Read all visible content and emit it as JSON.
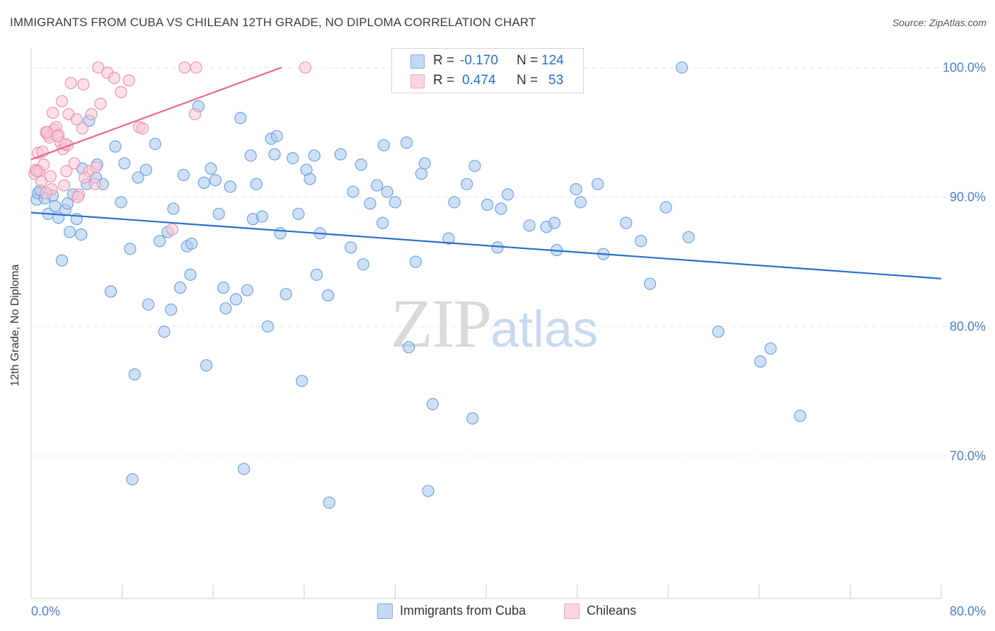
{
  "header": {
    "title": "IMMIGRANTS FROM CUBA VS CHILEAN 12TH GRADE, NO DIPLOMA CORRELATION CHART",
    "source": "Source: ZipAtlas.com"
  },
  "watermark": {
    "zip": "ZIP",
    "atlas": "atlas"
  },
  "legend": {
    "r_label": "R =",
    "n_label": "N =",
    "rows": [
      {
        "r": "-0.170",
        "n": "124",
        "color": "#7ab0e8"
      },
      {
        "r": "0.474",
        "n": "53",
        "color": "#f4a7c0"
      }
    ]
  },
  "colors": {
    "blue_fill": "#aac9f0",
    "blue_stroke": "#6fa3dc",
    "blue_line": "#2a6fcb",
    "pink_fill": "#f8c6d6",
    "pink_stroke": "#eb93b2",
    "pink_line": "#e8678f",
    "tick_label": "#4a7fcc",
    "grid": "#e6e6e6"
  },
  "chart_data": {
    "type": "scatter",
    "title": "IMMIGRANTS FROM CUBA VS CHILEAN 12TH GRADE, NO DIPLOMA CORRELATION CHART",
    "xlabel": "",
    "ylabel": "12th Grade, No Diploma",
    "xlim": [
      0,
      80
    ],
    "ylim": [
      59,
      101.5
    ],
    "x_tick_labels": [
      "0.0%",
      "80.0%"
    ],
    "y_ticks": [
      70,
      80,
      90,
      100
    ],
    "y_tick_labels": [
      "70.0%",
      "80.0%",
      "90.0%",
      "100.0%"
    ],
    "grid": true,
    "legend_position": "bottom-center",
    "series": [
      {
        "name": "Immigrants from Cuba",
        "color": "#7ab0e8",
        "trend": {
          "x": [
            0,
            80
          ],
          "y": [
            88.8,
            83.7
          ]
        },
        "points": [
          [
            0.5,
            89.8
          ],
          [
            0.6,
            90.3
          ],
          [
            0.8,
            90.5
          ],
          [
            1.2,
            89.9
          ],
          [
            1.5,
            88.7
          ],
          [
            1.9,
            90.1
          ],
          [
            2.1,
            89.3
          ],
          [
            2.4,
            88.4
          ],
          [
            2.7,
            85.1
          ],
          [
            3.0,
            89.0
          ],
          [
            3.2,
            89.5
          ],
          [
            3.4,
            87.3
          ],
          [
            3.7,
            90.2
          ],
          [
            4.0,
            88.3
          ],
          [
            4.4,
            87.1
          ],
          [
            4.5,
            92.2
          ],
          [
            4.9,
            91.0
          ],
          [
            5.1,
            95.9
          ],
          [
            5.7,
            91.5
          ],
          [
            5.8,
            92.5
          ],
          [
            6.3,
            91.0
          ],
          [
            7.0,
            82.7
          ],
          [
            7.9,
            89.6
          ],
          [
            7.4,
            93.9
          ],
          [
            8.2,
            92.6
          ],
          [
            8.7,
            86.0
          ],
          [
            9.4,
            91.5
          ],
          [
            9.1,
            76.3
          ],
          [
            8.9,
            68.2
          ],
          [
            10.1,
            92.1
          ],
          [
            10.3,
            81.7
          ],
          [
            10.9,
            94.1
          ],
          [
            11.3,
            86.6
          ],
          [
            11.7,
            79.6
          ],
          [
            12.0,
            87.3
          ],
          [
            12.3,
            81.3
          ],
          [
            12.5,
            89.1
          ],
          [
            13.1,
            83.0
          ],
          [
            13.4,
            91.7
          ],
          [
            13.7,
            86.2
          ],
          [
            14.1,
            86.4
          ],
          [
            14.0,
            84.0
          ],
          [
            14.7,
            97.0
          ],
          [
            15.2,
            91.1
          ],
          [
            15.4,
            77.0
          ],
          [
            15.8,
            92.2
          ],
          [
            16.2,
            91.3
          ],
          [
            16.5,
            88.7
          ],
          [
            16.9,
            83.0
          ],
          [
            17.1,
            81.4
          ],
          [
            17.5,
            90.8
          ],
          [
            18.0,
            82.1
          ],
          [
            18.4,
            96.1
          ],
          [
            18.7,
            69.0
          ],
          [
            19.0,
            82.8
          ],
          [
            19.3,
            93.2
          ],
          [
            19.5,
            88.3
          ],
          [
            19.8,
            91.0
          ],
          [
            20.3,
            88.5
          ],
          [
            20.8,
            80.0
          ],
          [
            21.1,
            94.5
          ],
          [
            21.4,
            93.3
          ],
          [
            21.6,
            94.7
          ],
          [
            21.9,
            87.2
          ],
          [
            22.4,
            82.5
          ],
          [
            23.0,
            93.0
          ],
          [
            23.5,
            88.7
          ],
          [
            23.8,
            75.8
          ],
          [
            24.2,
            92.1
          ],
          [
            24.5,
            91.4
          ],
          [
            24.9,
            93.2
          ],
          [
            25.1,
            84.0
          ],
          [
            25.4,
            87.2
          ],
          [
            26.1,
            82.4
          ],
          [
            26.2,
            66.4
          ],
          [
            27.2,
            93.3
          ],
          [
            28.1,
            86.1
          ],
          [
            28.3,
            90.4
          ],
          [
            29.0,
            92.5
          ],
          [
            29.2,
            84.8
          ],
          [
            29.8,
            89.5
          ],
          [
            30.4,
            90.9
          ],
          [
            30.9,
            88.0
          ],
          [
            31.3,
            90.4
          ],
          [
            31.0,
            94.0
          ],
          [
            32.0,
            89.6
          ],
          [
            33.0,
            94.2
          ],
          [
            33.2,
            78.4
          ],
          [
            33.8,
            85.0
          ],
          [
            34.3,
            91.8
          ],
          [
            34.6,
            92.6
          ],
          [
            34.9,
            67.3
          ],
          [
            35.3,
            74.0
          ],
          [
            36.7,
            86.8
          ],
          [
            37.2,
            89.6
          ],
          [
            38.3,
            91.0
          ],
          [
            38.8,
            72.9
          ],
          [
            39.0,
            92.4
          ],
          [
            40.1,
            89.4
          ],
          [
            41.0,
            86.1
          ],
          [
            41.3,
            89.1
          ],
          [
            41.9,
            90.2
          ],
          [
            43.8,
            87.8
          ],
          [
            45.3,
            87.7
          ],
          [
            46.0,
            88.0
          ],
          [
            46.2,
            85.9
          ],
          [
            47.9,
            90.6
          ],
          [
            48.3,
            89.6
          ],
          [
            49.8,
            91.0
          ],
          [
            50.3,
            85.6
          ],
          [
            52.3,
            88.0
          ],
          [
            53.6,
            86.6
          ],
          [
            54.4,
            83.3
          ],
          [
            55.8,
            89.2
          ],
          [
            57.2,
            100.0
          ],
          [
            57.8,
            86.9
          ],
          [
            60.4,
            79.6
          ],
          [
            64.1,
            77.3
          ],
          [
            65.0,
            78.3
          ],
          [
            67.6,
            73.1
          ]
        ]
      },
      {
        "name": "Chileans",
        "color": "#f4a7c0",
        "trend": {
          "x": [
            0,
            22.0
          ],
          "y": [
            92.9,
            100.0
          ]
        },
        "points": [
          [
            0.3,
            91.8
          ],
          [
            0.4,
            92.1
          ],
          [
            0.6,
            93.4
          ],
          [
            0.7,
            92.0
          ],
          [
            0.9,
            91.2
          ],
          [
            1.0,
            93.5
          ],
          [
            1.1,
            92.5
          ],
          [
            1.3,
            95.0
          ],
          [
            1.5,
            94.8
          ],
          [
            1.6,
            94.6
          ],
          [
            1.7,
            91.6
          ],
          [
            1.8,
            90.6
          ],
          [
            1.9,
            96.5
          ],
          [
            2.0,
            95.2
          ],
          [
            2.2,
            95.4
          ],
          [
            2.4,
            94.8
          ],
          [
            2.6,
            94.2
          ],
          [
            2.8,
            93.7
          ],
          [
            2.9,
            90.9
          ],
          [
            3.1,
            92.0
          ],
          [
            3.2,
            94.0
          ],
          [
            3.3,
            96.4
          ],
          [
            3.5,
            98.8
          ],
          [
            3.8,
            92.6
          ],
          [
            4.0,
            96.0
          ],
          [
            4.2,
            90.2
          ],
          [
            4.5,
            95.3
          ],
          [
            4.6,
            98.7
          ],
          [
            5.1,
            92.0
          ],
          [
            5.3,
            96.4
          ],
          [
            5.6,
            91.0
          ],
          [
            5.9,
            100.0
          ],
          [
            6.1,
            97.2
          ],
          [
            6.7,
            99.6
          ],
          [
            7.3,
            99.2
          ],
          [
            7.9,
            98.1
          ],
          [
            8.6,
            99.0
          ],
          [
            9.5,
            95.4
          ],
          [
            9.8,
            95.3
          ],
          [
            12.4,
            87.5
          ],
          [
            13.5,
            100.0
          ],
          [
            14.4,
            96.4
          ],
          [
            14.5,
            100.0
          ],
          [
            24.1,
            100.0
          ],
          [
            1.4,
            95.0
          ],
          [
            2.7,
            97.4
          ],
          [
            4.7,
            91.5
          ],
          [
            1.3,
            90.3
          ],
          [
            2.3,
            94.7
          ],
          [
            5.7,
            92.3
          ],
          [
            0.5,
            92.0
          ],
          [
            3.0,
            94.1
          ],
          [
            4.1,
            90.0
          ]
        ]
      }
    ]
  },
  "axes": {
    "y_title": "12th Grade, No Diploma"
  },
  "bottom_legend": {
    "items": [
      {
        "label": "Immigrants from Cuba"
      },
      {
        "label": "Chileans"
      }
    ]
  }
}
